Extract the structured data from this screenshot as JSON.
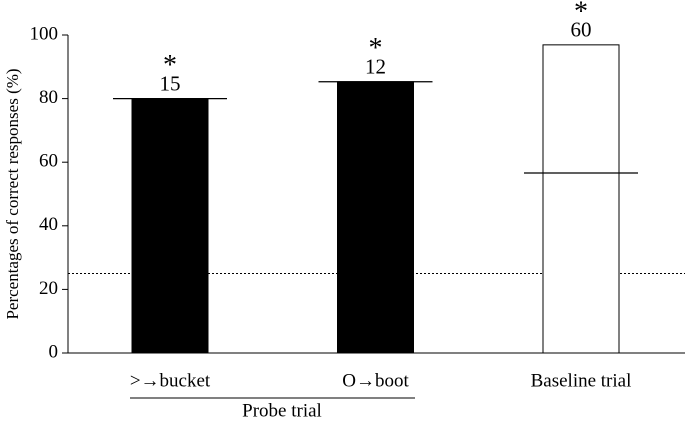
{
  "chart_data": {
    "type": "bar",
    "y_label": "Percentages of correct responses (%)",
    "categories": [
      ">→bucket",
      "O→boot",
      "Baseline trial"
    ],
    "values": [
      80,
      85.3,
      96.9
    ],
    "colors": [
      "#000000",
      "#000000",
      "#ffffff"
    ],
    "marker_values": [
      80,
      85.3,
      56.6
    ],
    "count_labels": [
      "15",
      "12",
      "60"
    ],
    "significance_labels": [
      "*",
      "*",
      "*"
    ],
    "chance_level": 25,
    "group_label": "Probe trial",
    "ylim": [
      0,
      100
    ],
    "yticks": [
      0,
      20,
      40,
      60,
      80,
      100
    ]
  }
}
